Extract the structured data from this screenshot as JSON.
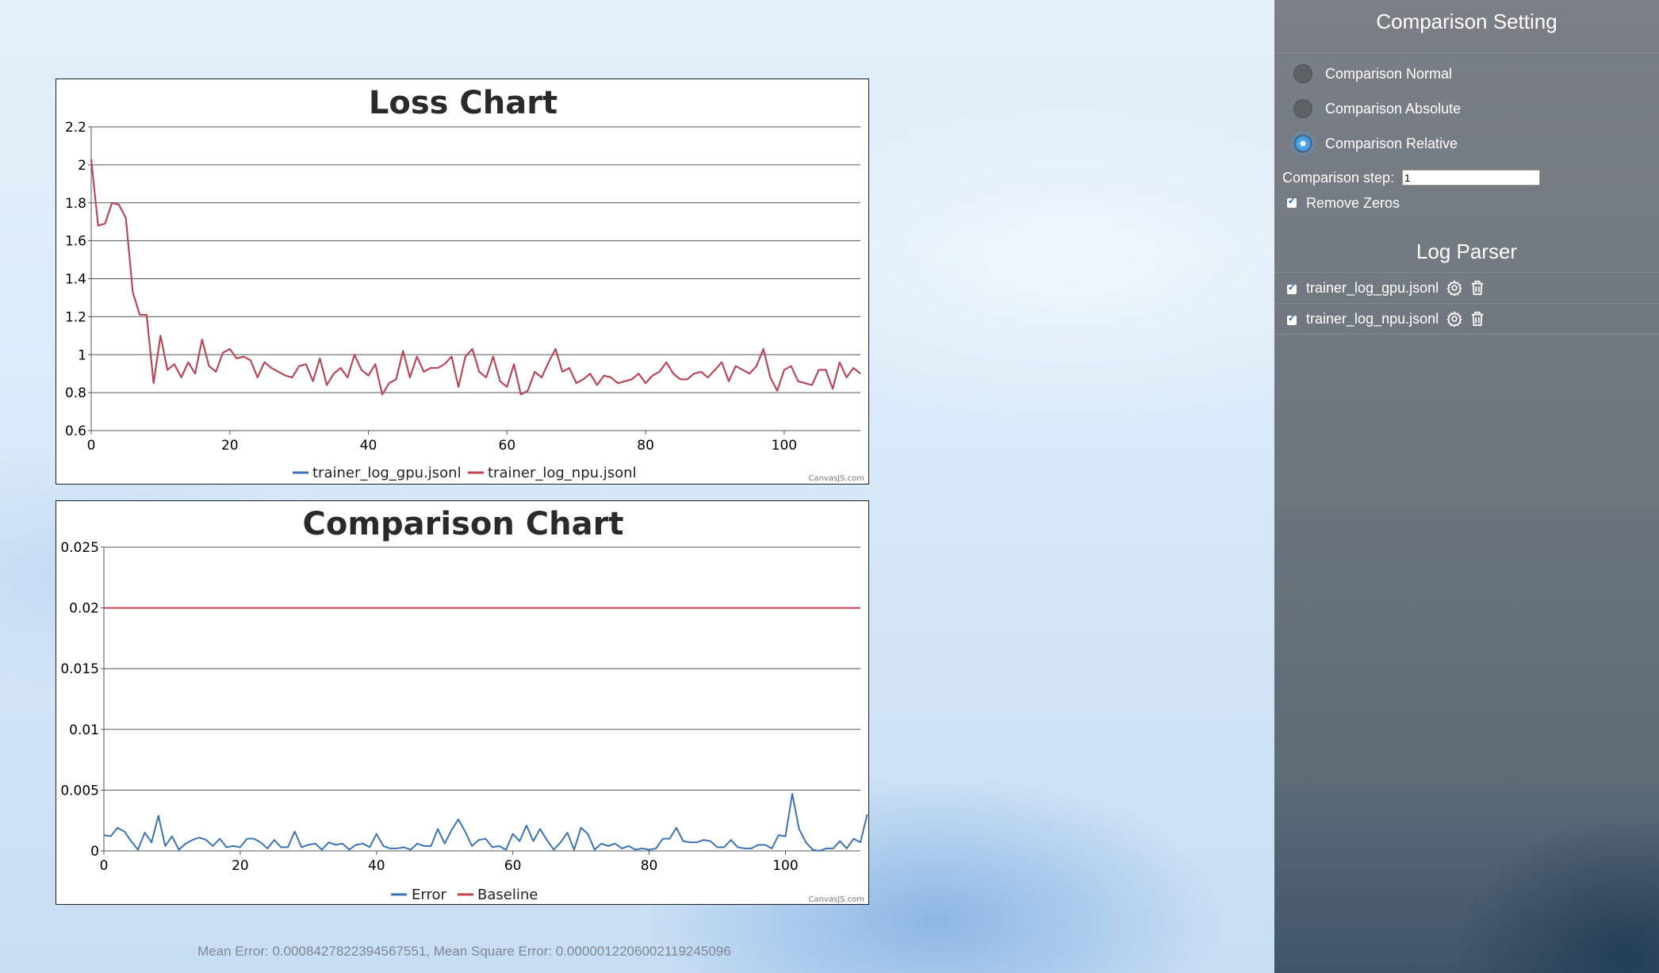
{
  "loss_chart": {
    "title": "Loss Chart",
    "credit": "CanvasJS.com",
    "colors": {
      "gpu": "#3c73b4",
      "npu": "#c0434f"
    },
    "chart_data": {
      "type": "line",
      "title": "Loss Chart",
      "xlim": [
        0,
        111
      ],
      "ylim": [
        0.6,
        2.2
      ],
      "x_ticks": [
        "0",
        "20",
        "40",
        "60",
        "80",
        "100"
      ],
      "y_ticks": [
        "0.6",
        "0.8",
        "1",
        "1.2",
        "1.4",
        "1.6",
        "1.8",
        "2",
        "2.2"
      ],
      "legend": "bottom-center",
      "grid": true,
      "series": [
        {
          "name": "trainer_log_gpu.jsonl",
          "color": "#3c73b4"
        },
        {
          "name": "trainer_log_npu.jsonl",
          "color": "#c0434f"
        }
      ],
      "values": [
        2.03,
        1.68,
        1.69,
        1.8,
        1.79,
        1.72,
        1.33,
        1.21,
        1.21,
        0.85,
        1.1,
        0.92,
        0.95,
        0.88,
        0.96,
        0.9,
        1.08,
        0.94,
        0.91,
        1.01,
        1.03,
        0.98,
        0.99,
        0.97,
        0.88,
        0.96,
        0.93,
        0.91,
        0.89,
        0.88,
        0.94,
        0.95,
        0.86,
        0.98,
        0.84,
        0.9,
        0.93,
        0.88,
        1.0,
        0.92,
        0.89,
        0.95,
        0.79,
        0.85,
        0.87,
        1.02,
        0.88,
        0.99,
        0.91,
        0.93,
        0.93,
        0.95,
        0.99,
        0.83,
        0.99,
        1.03,
        0.91,
        0.88,
        0.99,
        0.86,
        0.83,
        0.95,
        0.79,
        0.81,
        0.91,
        0.88,
        0.96,
        1.03,
        0.91,
        0.93,
        0.85,
        0.87,
        0.9,
        0.84,
        0.89,
        0.88,
        0.85,
        0.86,
        0.87,
        0.9,
        0.85,
        0.89,
        0.91,
        0.96,
        0.9,
        0.87,
        0.87,
        0.9,
        0.91,
        0.88,
        0.92,
        0.96,
        0.86,
        0.94,
        0.92,
        0.9,
        0.94,
        1.03,
        0.88,
        0.81,
        0.92,
        0.94,
        0.86,
        0.85,
        0.84,
        0.92,
        0.92,
        0.82,
        0.96,
        0.88,
        0.93,
        0.9
      ]
    }
  },
  "comparison_chart": {
    "title": "Comparison Chart",
    "credit": "CanvasJS.com",
    "chart_data": {
      "type": "line",
      "title": "Comparison Chart",
      "xlim": [
        0,
        111
      ],
      "ylim": [
        0,
        0.025
      ],
      "x_ticks": [
        "0",
        "20",
        "40",
        "60",
        "80",
        "100"
      ],
      "y_ticks": [
        "0",
        "0.005",
        "0.01",
        "0.015",
        "0.02",
        "0.025"
      ],
      "legend": "bottom-center",
      "grid": true,
      "series": [
        {
          "name": "Error",
          "color": "#3c73b4",
          "values": [
            0.0013,
            0.0012,
            0.0019,
            0.0016,
            0.0008,
            0.0001,
            0.0015,
            0.0007,
            0.0029,
            0.0004,
            0.0012,
            0.0001,
            0.0006,
            0.0009,
            0.0011,
            0.0009,
            0.0004,
            0.001,
            0.0003,
            0.0004,
            0.0003,
            0.001,
            0.001,
            0.0007,
            0.0002,
            0.0009,
            0.0003,
            0.0003,
            0.0016,
            0.0003,
            0.0005,
            0.0006,
            0.0001,
            0.0007,
            0.0005,
            0.0006,
            0.0001,
            0.0005,
            0.0006,
            0.0003,
            0.0014,
            0.0004,
            0.0002,
            0.0002,
            0.0003,
            0.0001,
            0.0006,
            0.0004,
            0.0004,
            0.0018,
            0.0006,
            0.0017,
            0.0026,
            0.0016,
            0.0004,
            0.0009,
            0.001,
            0.0003,
            0.0004,
            0.0001,
            0.0014,
            0.0008,
            0.0021,
            0.0008,
            0.0018,
            0.0009,
            0.0001,
            0.0007,
            0.0015,
            0.0001,
            0.0019,
            0.0014,
            0.0001,
            0.0006,
            0.0004,
            0.0006,
            0.0002,
            0.0004,
            0.0001,
            0.0002,
            0.0001,
            0.0002,
            0.001,
            0.001,
            0.0019,
            0.0008,
            0.0007,
            0.0007,
            0.0009,
            0.0008,
            0.0003,
            0.0003,
            0.0009,
            0.0003,
            0.0002,
            0.0002,
            0.0005,
            0.0005,
            0.0002,
            0.0013,
            0.0012,
            0.0047,
            0.0018,
            0.0007,
            0.0001,
            0.0,
            0.0002,
            0.0002,
            0.0008,
            0.0002,
            0.001,
            0.0007,
            0.003
          ]
        },
        {
          "name": "Baseline",
          "color": "#c0434f",
          "values": [
            0.02,
            0.02
          ]
        }
      ]
    }
  },
  "stats_text": "Mean Error: 0.0008427822394567551, Mean Square Error: 0.0000012206002119245096",
  "side_panel": {
    "title": "Comparison Setting",
    "radios": [
      {
        "label": "Comparison Normal",
        "checked": false
      },
      {
        "label": "Comparison Absolute",
        "checked": false
      },
      {
        "label": "Comparison Relative",
        "checked": true
      }
    ],
    "step_label": "Comparison step:",
    "step_value": "1",
    "remove_zeros_label": "Remove Zeros",
    "log_parser_title": "Log Parser",
    "files": [
      {
        "name": "trainer_log_gpu.jsonl",
        "settings_icon": "gear-icon",
        "delete_icon": "trash-icon"
      },
      {
        "name": "trainer_log_npu.jsonl",
        "settings_icon": "gear-icon",
        "delete_icon": "trash-icon"
      }
    ]
  }
}
